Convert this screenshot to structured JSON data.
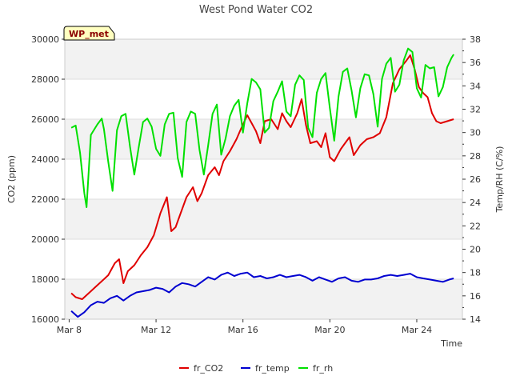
{
  "chart_data": {
    "type": "line",
    "title": "West Pond Water CO2",
    "badge": "WP_met",
    "xlabel": "Time",
    "ylabel_left": "CO2 (ppm)",
    "ylabel_right": "Temp/RH (C/%)",
    "x_ticks": [
      {
        "day": 8,
        "label": "Mar 8"
      },
      {
        "day": 12,
        "label": "Mar 12"
      },
      {
        "day": 16,
        "label": "Mar 16"
      },
      {
        "day": 20,
        "label": "Mar 20"
      },
      {
        "day": 24,
        "label": "Mar 24"
      }
    ],
    "xlim": [
      7.8,
      26.1
    ],
    "ylim_left": [
      16000,
      30000
    ],
    "yticks_left": [
      16000,
      18000,
      20000,
      22000,
      24000,
      26000,
      28000,
      30000
    ],
    "ylim_right": [
      14,
      38
    ],
    "yticks_right": [
      14,
      16,
      18,
      20,
      22,
      24,
      26,
      28,
      30,
      32,
      34,
      36,
      38
    ],
    "legend_position": "bottom-center",
    "series": [
      {
        "name": "fr_CO2",
        "color": "#e00000",
        "axis": "left",
        "points": [
          [
            8.1,
            17300
          ],
          [
            8.3,
            17100
          ],
          [
            8.6,
            17000
          ],
          [
            8.9,
            17300
          ],
          [
            9.2,
            17600
          ],
          [
            9.5,
            17900
          ],
          [
            9.8,
            18200
          ],
          [
            10.1,
            18800
          ],
          [
            10.3,
            19000
          ],
          [
            10.5,
            17800
          ],
          [
            10.7,
            18400
          ],
          [
            11.0,
            18700
          ],
          [
            11.3,
            19200
          ],
          [
            11.6,
            19600
          ],
          [
            11.9,
            20200
          ],
          [
            12.2,
            21300
          ],
          [
            12.5,
            22100
          ],
          [
            12.7,
            20400
          ],
          [
            12.9,
            20600
          ],
          [
            13.1,
            21200
          ],
          [
            13.4,
            22100
          ],
          [
            13.7,
            22600
          ],
          [
            13.9,
            21900
          ],
          [
            14.1,
            22300
          ],
          [
            14.4,
            23200
          ],
          [
            14.7,
            23600
          ],
          [
            14.9,
            23200
          ],
          [
            15.1,
            23900
          ],
          [
            15.4,
            24400
          ],
          [
            15.7,
            25000
          ],
          [
            15.9,
            25500
          ],
          [
            16.2,
            26200
          ],
          [
            16.4,
            25800
          ],
          [
            16.6,
            25400
          ],
          [
            16.8,
            24800
          ],
          [
            17.0,
            25900
          ],
          [
            17.3,
            26000
          ],
          [
            17.6,
            25500
          ],
          [
            17.8,
            26300
          ],
          [
            18.0,
            25900
          ],
          [
            18.2,
            25600
          ],
          [
            18.5,
            26300
          ],
          [
            18.7,
            27000
          ],
          [
            18.9,
            25700
          ],
          [
            19.1,
            24800
          ],
          [
            19.4,
            24900
          ],
          [
            19.6,
            24600
          ],
          [
            19.8,
            25300
          ],
          [
            20.0,
            24100
          ],
          [
            20.2,
            23900
          ],
          [
            20.5,
            24500
          ],
          [
            20.7,
            24800
          ],
          [
            20.9,
            25100
          ],
          [
            21.1,
            24200
          ],
          [
            21.4,
            24700
          ],
          [
            21.7,
            25000
          ],
          [
            22.0,
            25100
          ],
          [
            22.3,
            25300
          ],
          [
            22.6,
            26100
          ],
          [
            22.9,
            27800
          ],
          [
            23.2,
            28500
          ],
          [
            23.5,
            28900
          ],
          [
            23.7,
            29200
          ],
          [
            23.9,
            28500
          ],
          [
            24.1,
            27600
          ],
          [
            24.3,
            27300
          ],
          [
            24.5,
            27100
          ],
          [
            24.7,
            26300
          ],
          [
            24.9,
            25900
          ],
          [
            25.1,
            25800
          ],
          [
            25.4,
            25900
          ],
          [
            25.7,
            26000
          ]
        ]
      },
      {
        "name": "fr_temp",
        "color": "#0000d0",
        "axis": "right",
        "points": [
          [
            8.1,
            14.7
          ],
          [
            8.4,
            14.2
          ],
          [
            8.7,
            14.6
          ],
          [
            9.0,
            15.2
          ],
          [
            9.3,
            15.5
          ],
          [
            9.6,
            15.4
          ],
          [
            9.9,
            15.8
          ],
          [
            10.2,
            16.0
          ],
          [
            10.5,
            15.6
          ],
          [
            10.8,
            16.0
          ],
          [
            11.1,
            16.3
          ],
          [
            11.4,
            16.4
          ],
          [
            11.7,
            16.5
          ],
          [
            12.0,
            16.7
          ],
          [
            12.3,
            16.6
          ],
          [
            12.6,
            16.3
          ],
          [
            12.9,
            16.8
          ],
          [
            13.2,
            17.1
          ],
          [
            13.5,
            17.0
          ],
          [
            13.8,
            16.8
          ],
          [
            14.1,
            17.2
          ],
          [
            14.4,
            17.6
          ],
          [
            14.7,
            17.4
          ],
          [
            15.0,
            17.8
          ],
          [
            15.3,
            18.0
          ],
          [
            15.6,
            17.7
          ],
          [
            15.9,
            17.9
          ],
          [
            16.2,
            18.0
          ],
          [
            16.5,
            17.6
          ],
          [
            16.8,
            17.7
          ],
          [
            17.1,
            17.5
          ],
          [
            17.4,
            17.6
          ],
          [
            17.7,
            17.8
          ],
          [
            18.0,
            17.6
          ],
          [
            18.3,
            17.7
          ],
          [
            18.6,
            17.8
          ],
          [
            18.9,
            17.6
          ],
          [
            19.2,
            17.3
          ],
          [
            19.5,
            17.6
          ],
          [
            19.8,
            17.4
          ],
          [
            20.1,
            17.2
          ],
          [
            20.4,
            17.5
          ],
          [
            20.7,
            17.6
          ],
          [
            21.0,
            17.3
          ],
          [
            21.3,
            17.2
          ],
          [
            21.6,
            17.4
          ],
          [
            21.9,
            17.4
          ],
          [
            22.2,
            17.5
          ],
          [
            22.5,
            17.7
          ],
          [
            22.8,
            17.8
          ],
          [
            23.1,
            17.7
          ],
          [
            23.4,
            17.8
          ],
          [
            23.7,
            17.9
          ],
          [
            24.0,
            17.6
          ],
          [
            24.3,
            17.5
          ],
          [
            24.6,
            17.4
          ],
          [
            24.9,
            17.3
          ],
          [
            25.2,
            17.2
          ],
          [
            25.5,
            17.4
          ],
          [
            25.7,
            17.5
          ]
        ]
      },
      {
        "name": "fr_rh",
        "color": "#00e000",
        "axis": "right",
        "points": [
          [
            8.1,
            30.4
          ],
          [
            8.3,
            30.6
          ],
          [
            8.5,
            28.3
          ],
          [
            8.7,
            24.8
          ],
          [
            8.8,
            23.6
          ],
          [
            9.0,
            29.8
          ],
          [
            9.3,
            30.7
          ],
          [
            9.5,
            31.2
          ],
          [
            9.6,
            30.3
          ],
          [
            9.8,
            27.5
          ],
          [
            10.0,
            25.0
          ],
          [
            10.2,
            30.2
          ],
          [
            10.4,
            31.4
          ],
          [
            10.6,
            31.6
          ],
          [
            10.8,
            28.8
          ],
          [
            11.0,
            26.4
          ],
          [
            11.2,
            28.7
          ],
          [
            11.4,
            30.9
          ],
          [
            11.6,
            31.2
          ],
          [
            11.8,
            30.5
          ],
          [
            12.0,
            28.6
          ],
          [
            12.2,
            28.0
          ],
          [
            12.4,
            30.7
          ],
          [
            12.6,
            31.6
          ],
          [
            12.8,
            31.7
          ],
          [
            13.0,
            27.8
          ],
          [
            13.2,
            26.2
          ],
          [
            13.4,
            30.9
          ],
          [
            13.6,
            31.8
          ],
          [
            13.8,
            31.6
          ],
          [
            14.0,
            28.5
          ],
          [
            14.2,
            26.4
          ],
          [
            14.4,
            28.9
          ],
          [
            14.6,
            31.6
          ],
          [
            14.8,
            32.4
          ],
          [
            15.0,
            28.1
          ],
          [
            15.2,
            29.5
          ],
          [
            15.4,
            31.4
          ],
          [
            15.6,
            32.3
          ],
          [
            15.8,
            32.8
          ],
          [
            16.0,
            30.0
          ],
          [
            16.2,
            32.5
          ],
          [
            16.4,
            34.6
          ],
          [
            16.6,
            34.3
          ],
          [
            16.8,
            33.7
          ],
          [
            17.0,
            30.0
          ],
          [
            17.2,
            30.4
          ],
          [
            17.4,
            32.7
          ],
          [
            17.6,
            33.5
          ],
          [
            17.8,
            34.4
          ],
          [
            18.0,
            31.8
          ],
          [
            18.2,
            31.4
          ],
          [
            18.4,
            34.1
          ],
          [
            18.6,
            34.9
          ],
          [
            18.8,
            34.5
          ],
          [
            19.0,
            30.4
          ],
          [
            19.2,
            29.6
          ],
          [
            19.4,
            33.4
          ],
          [
            19.6,
            34.6
          ],
          [
            19.8,
            35.1
          ],
          [
            20.0,
            32.1
          ],
          [
            20.2,
            29.3
          ],
          [
            20.4,
            33.1
          ],
          [
            20.6,
            35.2
          ],
          [
            20.8,
            35.5
          ],
          [
            21.0,
            33.6
          ],
          [
            21.2,
            31.3
          ],
          [
            21.4,
            33.8
          ],
          [
            21.6,
            35.0
          ],
          [
            21.8,
            34.9
          ],
          [
            22.0,
            33.3
          ],
          [
            22.2,
            30.5
          ],
          [
            22.4,
            34.6
          ],
          [
            22.6,
            35.9
          ],
          [
            22.8,
            36.4
          ],
          [
            23.0,
            33.5
          ],
          [
            23.2,
            34.1
          ],
          [
            23.4,
            36.2
          ],
          [
            23.6,
            37.2
          ],
          [
            23.8,
            36.9
          ],
          [
            24.0,
            33.8
          ],
          [
            24.2,
            33.0
          ],
          [
            24.4,
            35.8
          ],
          [
            24.6,
            35.5
          ],
          [
            24.8,
            35.6
          ],
          [
            25.0,
            33.1
          ],
          [
            25.2,
            33.9
          ],
          [
            25.4,
            35.6
          ],
          [
            25.6,
            36.4
          ],
          [
            25.7,
            36.7
          ]
        ]
      }
    ]
  }
}
